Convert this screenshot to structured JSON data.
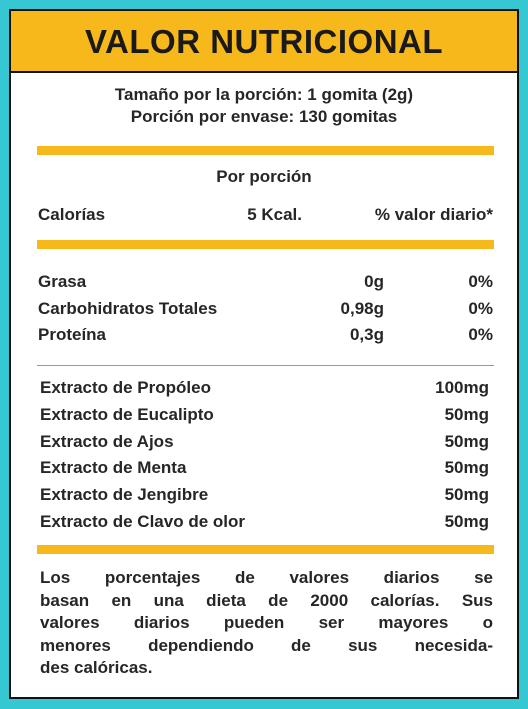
{
  "header": {
    "title": "VALOR NUTRICIONAL"
  },
  "serving": [
    "Tamaño por la porción: 1 gomita (2g)",
    "Porción por envase: 130 gomitas"
  ],
  "per_serving": "Por porción",
  "calories": {
    "label": "Calorías",
    "value": "5 Kcal.",
    "daily_value_header": "% valor diario*"
  },
  "nutrients": [
    {
      "name": "Grasa",
      "amount": "0g",
      "daily_value": "0%"
    },
    {
      "name": "Carbohidratos Totales",
      "amount": "0,98g",
      "daily_value": "0%"
    },
    {
      "name": "Proteína",
      "amount": "0,3g",
      "daily_value": "0%"
    }
  ],
  "extracts": [
    {
      "name": "Extracto de Propóleo",
      "amount": "100mg"
    },
    {
      "name": "Extracto de Eucalipto",
      "amount": "50mg"
    },
    {
      "name": "Extracto de Ajos",
      "amount": "50mg"
    },
    {
      "name": "Extracto de Menta",
      "amount": "50mg"
    },
    {
      "name": "Extracto de Jengibre",
      "amount": "50mg"
    },
    {
      "name": "Extracto de Clavo de olor",
      "amount": "50mg"
    }
  ],
  "footnote": [
    "Los porcentajes de valores diarios se",
    "basan en una dieta de 2000 calorías. Sus",
    "valores diarios pueden ser mayores o",
    "menores dependiendo de sus necesida-",
    "des calóricas."
  ]
}
